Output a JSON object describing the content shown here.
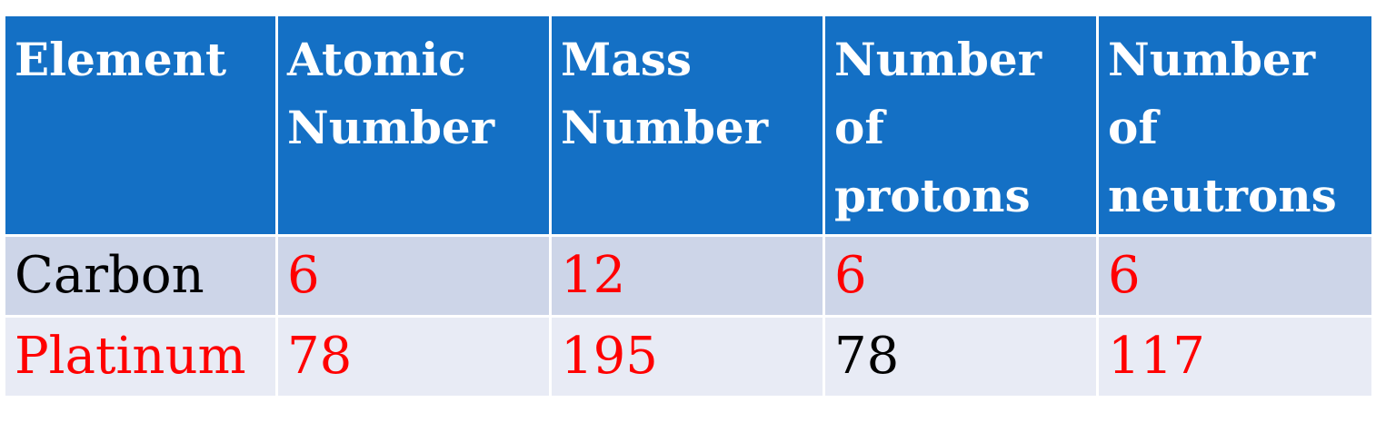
{
  "table": {
    "headers": [
      {
        "lines": [
          "Element"
        ]
      },
      {
        "lines": [
          "Atomic",
          "Number"
        ]
      },
      {
        "lines": [
          "Mass",
          "Number"
        ]
      },
      {
        "lines": [
          "Number",
          "of",
          "protons"
        ]
      },
      {
        "lines": [
          "Number",
          "of",
          "neutrons"
        ]
      }
    ],
    "rows": [
      {
        "cells": [
          {
            "value": "Carbon",
            "color": "#000000"
          },
          {
            "value": "6",
            "color": "#ff0000"
          },
          {
            "value": "12",
            "color": "#ff0000"
          },
          {
            "value": "6",
            "color": "#ff0000"
          },
          {
            "value": "6",
            "color": "#ff0000"
          }
        ]
      },
      {
        "cells": [
          {
            "value": "Platinum",
            "color": "#ff0000"
          },
          {
            "value": "78",
            "color": "#ff0000"
          },
          {
            "value": "195",
            "color": "#ff0000"
          },
          {
            "value": "78",
            "color": "#000000"
          },
          {
            "value": "117",
            "color": "#ff0000"
          }
        ]
      }
    ]
  },
  "colors": {
    "header_background": "#1470c5",
    "header_text": "#ffffff",
    "row_odd_background": "#cdd5e8",
    "row_even_background": "#e8ebf5",
    "highlight_text": "#ff0000"
  }
}
